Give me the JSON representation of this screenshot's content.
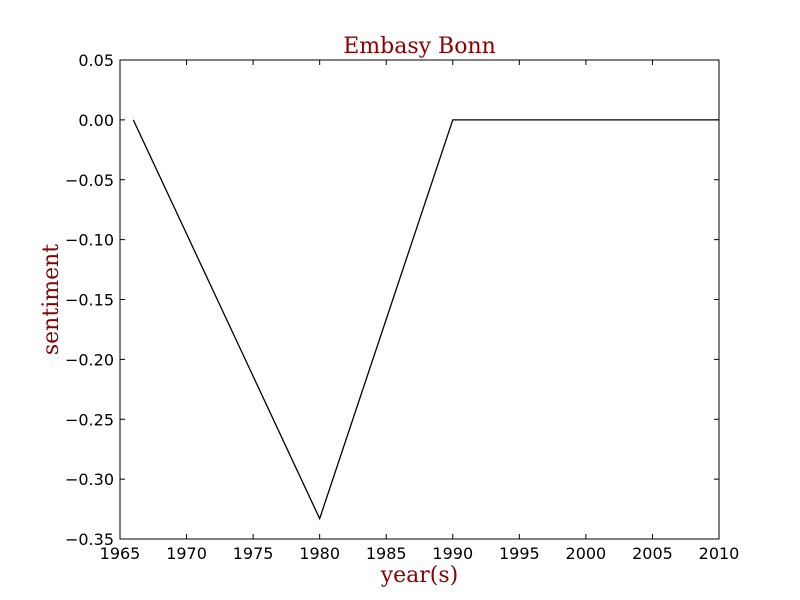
{
  "chart_data": {
    "type": "line",
    "title": "Embasy Bonn",
    "xlabel": "year(s)",
    "ylabel": "sentiment",
    "xlim": [
      1965,
      2010
    ],
    "ylim": [
      -0.35,
      0.05
    ],
    "xticks": [
      1965,
      1970,
      1975,
      1980,
      1985,
      1990,
      1995,
      2000,
      2005,
      2010
    ],
    "yticks": [
      0.05,
      0.0,
      -0.05,
      -0.1,
      -0.15,
      -0.2,
      -0.25,
      -0.3,
      -0.35
    ],
    "xtick_labels": [
      "1965",
      "1970",
      "1975",
      "1980",
      "1985",
      "1990",
      "1995",
      "2000",
      "2005",
      "2010"
    ],
    "ytick_labels": [
      "0.05",
      "0.00",
      "−0.05",
      "−0.10",
      "−0.15",
      "−0.20",
      "−0.25",
      "−0.30",
      "−0.35"
    ],
    "grid": false,
    "series": [
      {
        "x": [
          1966,
          1980,
          1990,
          2010
        ],
        "y": [
          0.0,
          -0.333,
          0.0,
          0.0
        ],
        "color": "#000000"
      }
    ],
    "label_color": "#8b0000"
  }
}
